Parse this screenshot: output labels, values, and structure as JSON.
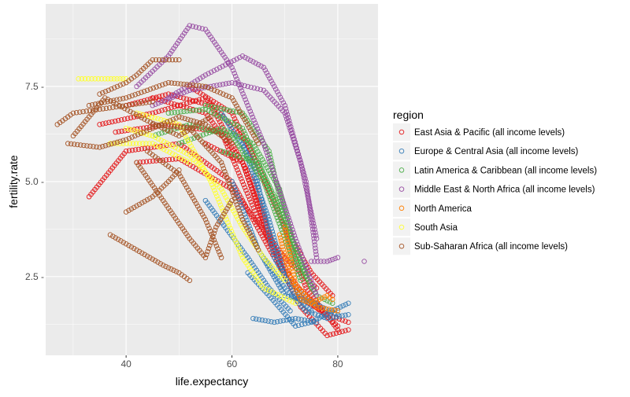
{
  "chart_data": {
    "type": "scatter",
    "title": "",
    "xlabel": "life.expectancy",
    "ylabel": "fertility.rate",
    "xlim": [
      24.8,
      87.6
    ],
    "ylim": [
      0.43,
      9.67
    ],
    "x_ticks": [
      40,
      60,
      80
    ],
    "x_tick_labels": [
      "40",
      "60",
      "80"
    ],
    "y_ticks": [
      2.5,
      5.0,
      7.5
    ],
    "y_tick_labels": [
      "2.5 -",
      "5.0 -",
      "7.5 -"
    ],
    "grid": true,
    "marker": "open-circle",
    "legend": {
      "title": "region",
      "placement": "right"
    },
    "note": "Series are given as approximate trajectories (life.expectancy, fertility.rate) of countries over time; points are sampled along them.",
    "series": [
      {
        "name": "East Asia & Pacific (all income levels)",
        "color": "#E41A1C",
        "trajectories": [
          [
            [
              33,
              4.6
            ],
            [
              40,
              5.8
            ],
            [
              50,
              6
            ],
            [
              60,
              5
            ],
            [
              68,
              3
            ],
            [
              75,
              1.8
            ],
            [
              80,
              1.2
            ]
          ],
          [
            [
              45,
              7.2
            ],
            [
              55,
              6.8
            ],
            [
              62,
              5.5
            ],
            [
              70,
              2.5
            ],
            [
              78,
              1.5
            ],
            [
              82,
              1.3
            ]
          ],
          [
            [
              38,
              6.3
            ],
            [
              48,
              6.5
            ],
            [
              58,
              6.3
            ],
            [
              65,
              4
            ],
            [
              72,
              2
            ],
            [
              77,
              1.6
            ]
          ],
          [
            [
              52,
              7.5
            ],
            [
              60,
              6.8
            ],
            [
              68,
              4.5
            ],
            [
              74,
              2.2
            ],
            [
              80,
              1.1
            ]
          ],
          [
            [
              42,
              5.5
            ],
            [
              50,
              5.6
            ],
            [
              60,
              4.8
            ],
            [
              70,
              3
            ],
            [
              76,
              2.2
            ]
          ],
          [
            [
              55,
              6
            ],
            [
              62,
              5.5
            ],
            [
              67,
              3.5
            ],
            [
              71,
              2.5
            ]
          ],
          [
            [
              35,
              6.5
            ],
            [
              45,
              6.8
            ],
            [
              55,
              7.2
            ],
            [
              63,
              6
            ],
            [
              70,
              3.8
            ],
            [
              75,
              2.6
            ],
            [
              79,
              2.0
            ]
          ],
          [
            [
              40,
              7.0
            ],
            [
              48,
              7.3
            ],
            [
              56,
              7.0
            ],
            [
              64,
              5.0
            ],
            [
              69,
              2.8
            ],
            [
              73,
              1.7
            ],
            [
              78,
              0.95
            ],
            [
              82,
              1.1
            ]
          ]
        ]
      },
      {
        "name": "Europe & Central Asia (all income levels)",
        "color": "#377EB8",
        "trajectories": [
          [
            [
              58,
              6.8
            ],
            [
              64,
              5.5
            ],
            [
              68,
              3
            ],
            [
              72,
              2
            ],
            [
              75,
              1.6
            ]
          ],
          [
            [
              62,
              6
            ],
            [
              67,
              4
            ],
            [
              70,
              2.5
            ],
            [
              74,
              1.9
            ],
            [
              80,
              1.5
            ]
          ],
          [
            [
              66,
              3
            ],
            [
              70,
              2.2
            ],
            [
              74,
              1.6
            ],
            [
              78,
              1.4
            ],
            [
              82,
              1.5
            ]
          ],
          [
            [
              64,
              1.4
            ],
            [
              68,
              1.3
            ],
            [
              72,
              1.4
            ],
            [
              76,
              1.3
            ]
          ],
          [
            [
              60,
              5
            ],
            [
              65,
              3.2
            ],
            [
              70,
              2
            ],
            [
              76,
              1.8
            ]
          ],
          [
            [
              55,
              4.5
            ],
            [
              63,
              3
            ],
            [
              67,
              2.2
            ],
            [
              71,
              1.6
            ]
          ],
          [
            [
              63,
              2.6
            ],
            [
              67,
              2.0
            ],
            [
              72,
              1.2
            ],
            [
              75,
              1.3
            ],
            [
              79,
              1.6
            ],
            [
              82,
              1.8
            ]
          ]
        ]
      },
      {
        "name": "Latin America & Caribbean (all income levels)",
        "color": "#4DAF4A",
        "trajectories": [
          [
            [
              48,
              6.8
            ],
            [
              55,
              6.9
            ],
            [
              62,
              6.4
            ],
            [
              68,
              4.5
            ],
            [
              72,
              3
            ],
            [
              76,
              2
            ],
            [
              79,
              1.8
            ]
          ],
          [
            [
              55,
              7
            ],
            [
              62,
              6.8
            ],
            [
              67,
              5.8
            ],
            [
              70,
              4
            ],
            [
              74,
              2.5
            ]
          ],
          [
            [
              45,
              6.2
            ],
            [
              52,
              6.5
            ],
            [
              60,
              6.2
            ],
            [
              66,
              5
            ],
            [
              70,
              3.5
            ],
            [
              73,
              2.4
            ]
          ],
          [
            [
              58,
              5.8
            ],
            [
              65,
              5.5
            ],
            [
              70,
              4
            ],
            [
              75,
              2.2
            ]
          ],
          [
            [
              50,
              6.0
            ],
            [
              58,
              6.4
            ],
            [
              64,
              6.0
            ],
            [
              69,
              4.8
            ],
            [
              72,
              3.2
            ]
          ]
        ]
      },
      {
        "name": "Middle East & North Africa (all income levels)",
        "color": "#984EA3",
        "trajectories": [
          [
            [
              42,
              7.5
            ],
            [
              48,
              8.3
            ],
            [
              52,
              9.1
            ],
            [
              55,
              9
            ],
            [
              60,
              8
            ],
            [
              66,
              6
            ],
            [
              72,
              3.5
            ],
            [
              76,
              2
            ]
          ],
          [
            [
              48,
              7.2
            ],
            [
              55,
              7.8
            ],
            [
              62,
              8.3
            ],
            [
              66,
              8
            ],
            [
              70,
              7
            ],
            [
              74,
              5
            ],
            [
              76,
              3
            ]
          ],
          [
            [
              45,
              7.0
            ],
            [
              52,
              7.4
            ],
            [
              60,
              7.6
            ],
            [
              66,
              7.4
            ],
            [
              70,
              6.8
            ],
            [
              73,
              5.5
            ],
            [
              76,
              3.5
            ]
          ],
          [
            [
              75,
              2.9
            ],
            [
              78,
              2.9
            ],
            [
              80,
              3.0
            ]
          ],
          [
            [
              85,
              2.9
            ]
          ]
        ]
      },
      {
        "name": "North America",
        "color": "#FF7F00",
        "trajectories": [
          [
            [
              69,
              3.6
            ],
            [
              71,
              2.5
            ],
            [
              73,
              1.9
            ],
            [
              75,
              1.8
            ],
            [
              78,
              2.0
            ],
            [
              79,
              1.9
            ]
          ],
          [
            [
              70,
              3.8
            ],
            [
              72,
              2.3
            ],
            [
              76,
              1.7
            ],
            [
              80,
              1.6
            ]
          ]
        ]
      },
      {
        "name": "South Asia",
        "color": "#FFFF33",
        "trajectories": [
          [
            [
              31,
              7.7
            ],
            [
              36,
              7.7
            ],
            [
              40,
              7.7
            ]
          ],
          [
            [
              40,
              6.4
            ],
            [
              45,
              6.2
            ],
            [
              52,
              5.7
            ],
            [
              58,
              4.8
            ],
            [
              62,
              3.8
            ],
            [
              66,
              3
            ],
            [
              70,
              2.4
            ]
          ],
          [
            [
              42,
              6.8
            ],
            [
              50,
              6.5
            ],
            [
              56,
              5
            ],
            [
              62,
              3
            ],
            [
              66,
              2.2
            ],
            [
              72,
              1.8
            ]
          ],
          [
            [
              37,
              6
            ],
            [
              45,
              6
            ],
            [
              52,
              5.5
            ]
          ]
        ]
      },
      {
        "name": "Sub-Saharan Africa (all income levels)",
        "color": "#A65628",
        "trajectories": [
          [
            [
              27,
              6.5
            ],
            [
              30,
              6.8
            ],
            [
              35,
              6.9
            ],
            [
              40,
              7
            ],
            [
              45,
              7.1
            ]
          ],
          [
            [
              35,
              7.3
            ],
            [
              40,
              7.6
            ],
            [
              42,
              7.8
            ],
            [
              45,
              8.2
            ],
            [
              50,
              8.2
            ]
          ],
          [
            [
              29,
              6
            ],
            [
              35,
              5.9
            ],
            [
              40,
              6.1
            ],
            [
              45,
              6.4
            ],
            [
              50,
              6.7
            ],
            [
              55,
              6.5
            ],
            [
              60,
              6
            ]
          ],
          [
            [
              40,
              4.2
            ],
            [
              45,
              4.6
            ],
            [
              48,
              5.0
            ],
            [
              50,
              5.3
            ]
          ],
          [
            [
              37,
              3.6
            ],
            [
              42,
              3.2
            ],
            [
              47,
              2.8
            ],
            [
              50,
              2.6
            ],
            [
              52,
              2.4
            ]
          ],
          [
            [
              42,
              5.5
            ],
            [
              47,
              4.5
            ],
            [
              52,
              3.5
            ],
            [
              55,
              3.0
            ],
            [
              57,
              3.8
            ],
            [
              60,
              4.5
            ]
          ],
          [
            [
              45,
              6.5
            ],
            [
              52,
              6.4
            ],
            [
              58,
              5.5
            ],
            [
              62,
              4.0
            ],
            [
              65,
              3.2
            ]
          ],
          [
            [
              33,
              7.0
            ],
            [
              40,
              7.2
            ],
            [
              48,
              7.6
            ],
            [
              55,
              7.5
            ],
            [
              60,
              7.2
            ],
            [
              65,
              6.0
            ]
          ],
          [
            [
              44,
              5.8
            ],
            [
              50,
              5.2
            ],
            [
              55,
              4.0
            ],
            [
              58,
              3.0
            ]
          ],
          [
            [
              30,
              6.2
            ],
            [
              36,
              7.2
            ],
            [
              44,
              6.6
            ],
            [
              50,
              6.2
            ],
            [
              56,
              6.7
            ]
          ]
        ]
      }
    ]
  }
}
